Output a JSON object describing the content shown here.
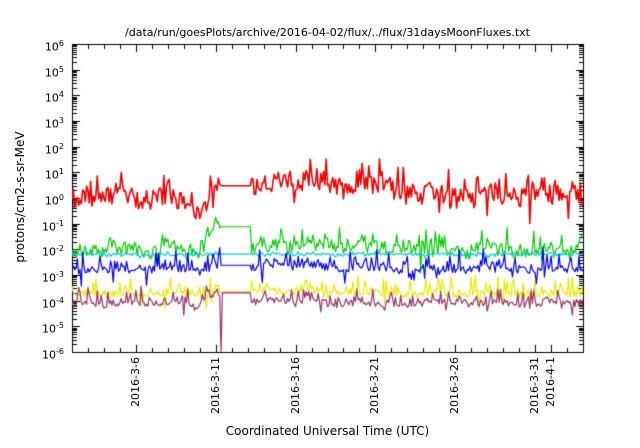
{
  "chart_data": {
    "type": "line",
    "title": "/data/run/goesPlots/archive/2016-04-02/flux/../flux/31daysMoonFluxes.txt",
    "xlabel": "Coordinated Universal Time (UTC)",
    "ylabel": "protons/cm2-s-sr-MeV",
    "grid": false,
    "legend": "none",
    "points_per_day": 12,
    "x_axis": {
      "start_date": "2016-03-02",
      "span_days": 32,
      "tick_labels": [
        "2016-3-6",
        "2016-3-11",
        "2016-3-16",
        "2016-3-21",
        "2016-3-26",
        "2016-3-31",
        "2016-4-1"
      ],
      "tick_days": [
        4,
        9,
        14,
        19,
        24,
        29,
        30
      ],
      "minor_tick_every_days": 1
    },
    "y_axis": {
      "scale": "log10",
      "min_exp": -6,
      "max_exp": 6,
      "tick_exponents": [
        6,
        5,
        4,
        3,
        2,
        1,
        0,
        -1,
        -2,
        -3,
        -4,
        -5,
        -6
      ]
    },
    "data_gap": {
      "start_day": 9.3,
      "end_day": 11.2
    },
    "series": [
      {
        "name": "green-channel",
        "color": "#00cc00",
        "seed": 22,
        "line_width": 1.2,
        "jitter_decades": 0.25,
        "spike_decades": 0.8,
        "down_spike_fraction": 0.1,
        "gap_log10": -1.12,
        "daily_log10": [
          -2.1,
          -2.0,
          -2.1,
          -1.95,
          -2.05,
          -2.15,
          -1.9,
          -2.1,
          -2.2,
          -1.12,
          -1.12,
          -2.0,
          -1.9,
          -1.85,
          -2.0,
          -1.8,
          -1.9,
          -2.05,
          -1.85,
          -1.9,
          -2.0,
          -2.05,
          -2.1,
          -2.0,
          -2.1,
          -2.15,
          -1.95,
          -2.05,
          -2.1,
          -2.0,
          -1.95,
          -2.0
        ]
      },
      {
        "name": "cyan-channel",
        "color": "#00cccc",
        "seed": 33,
        "line_width": 1.2,
        "jitter_decades": 0.05,
        "spike_decades": 0.12,
        "down_spike_fraction": 0.3,
        "gap_log10": -2.19,
        "daily_log10": [
          -2.2,
          -2.18,
          -2.22,
          -2.2,
          -2.19,
          -2.21,
          -2.2,
          -2.22,
          -2.2,
          -2.19,
          -2.19,
          -2.2,
          -2.18,
          -2.2,
          -2.21,
          -2.19,
          -2.2,
          -2.22,
          -2.2,
          -2.18,
          -2.2,
          -2.21,
          -2.2,
          -2.19,
          -2.22,
          -2.2,
          -2.18,
          -2.2,
          -2.21,
          -2.2,
          -2.19,
          -2.2
        ]
      },
      {
        "name": "yellow-channel",
        "color": "#e8e800",
        "seed": 55,
        "line_width": 1.2,
        "jitter_decades": 0.12,
        "spike_decades": 0.65,
        "down_spike_fraction": 0.1,
        "gap_log10": -3.66,
        "daily_log10": [
          -3.75,
          -3.7,
          -3.8,
          -3.7,
          -3.75,
          -3.8,
          -3.65,
          -3.75,
          -3.85,
          -3.66,
          -3.66,
          -3.7,
          -3.6,
          -3.65,
          -3.7,
          -3.6,
          -3.7,
          -3.75,
          -3.65,
          -3.7,
          -3.75,
          -3.8,
          -3.75,
          -3.7,
          -3.8,
          -3.75,
          -3.7,
          -3.75,
          -3.8,
          -3.75,
          -3.7,
          -3.75
        ]
      },
      {
        "name": "blue-channel",
        "color": "#0000ee",
        "seed": 44,
        "line_width": 1.2,
        "jitter_decades": 0.15,
        "spike_decades": 0.75,
        "down_spike_fraction": 0.1,
        "gap_log10": -2.62,
        "daily_log10": [
          -2.8,
          -2.85,
          -2.8,
          -2.75,
          -2.85,
          -2.8,
          -2.7,
          -2.8,
          -2.9,
          -2.62,
          -2.62,
          -2.75,
          -2.6,
          -2.55,
          -2.7,
          -2.6,
          -2.7,
          -2.8,
          -2.65,
          -2.7,
          -2.8,
          -2.85,
          -2.8,
          -2.75,
          -2.85,
          -2.8,
          -2.7,
          -2.8,
          -2.85,
          -2.8,
          -2.75,
          -2.8
        ]
      },
      {
        "name": "purple-channel",
        "color": "#993366",
        "seed": 66,
        "line_width": 1.2,
        "jitter_decades": 0.15,
        "spike_decades": 0.55,
        "down_spike_fraction": 0.12,
        "gap_log10": -3.7,
        "down_spike": {
          "day": 9.33,
          "log10_value": -6
        },
        "daily_log10": [
          -4.1,
          -4.05,
          -4.15,
          -4.05,
          -4.1,
          -4.15,
          -4.0,
          -4.1,
          -4.2,
          -3.7,
          -3.7,
          -4.05,
          -4.0,
          -4.05,
          -4.1,
          -4.0,
          -4.1,
          -4.15,
          -4.05,
          -4.1,
          -4.1,
          -4.15,
          -4.1,
          -4.05,
          -4.15,
          -4.1,
          -4.05,
          -4.1,
          -4.15,
          -4.1,
          -4.05,
          -4.1
        ]
      },
      {
        "name": "red-channel",
        "color": "#ee0000",
        "seed": 11,
        "line_width": 1.6,
        "jitter_decades": 0.4,
        "spike_decades": 0.8,
        "down_spike_fraction": 0.15,
        "gap_log10": 0.48,
        "daily_log10": [
          -0.1,
          0.1,
          -0.05,
          0.2,
          0.0,
          -0.15,
          0.25,
          -0.3,
          -0.75,
          0.48,
          0.48,
          0.3,
          0.5,
          0.65,
          0.45,
          0.8,
          0.6,
          0.35,
          0.6,
          0.5,
          0.3,
          0.2,
          0.1,
          0.25,
          0.0,
          -0.1,
          0.2,
          0.1,
          0.0,
          0.15,
          0.2,
          0.15
        ]
      }
    ]
  }
}
